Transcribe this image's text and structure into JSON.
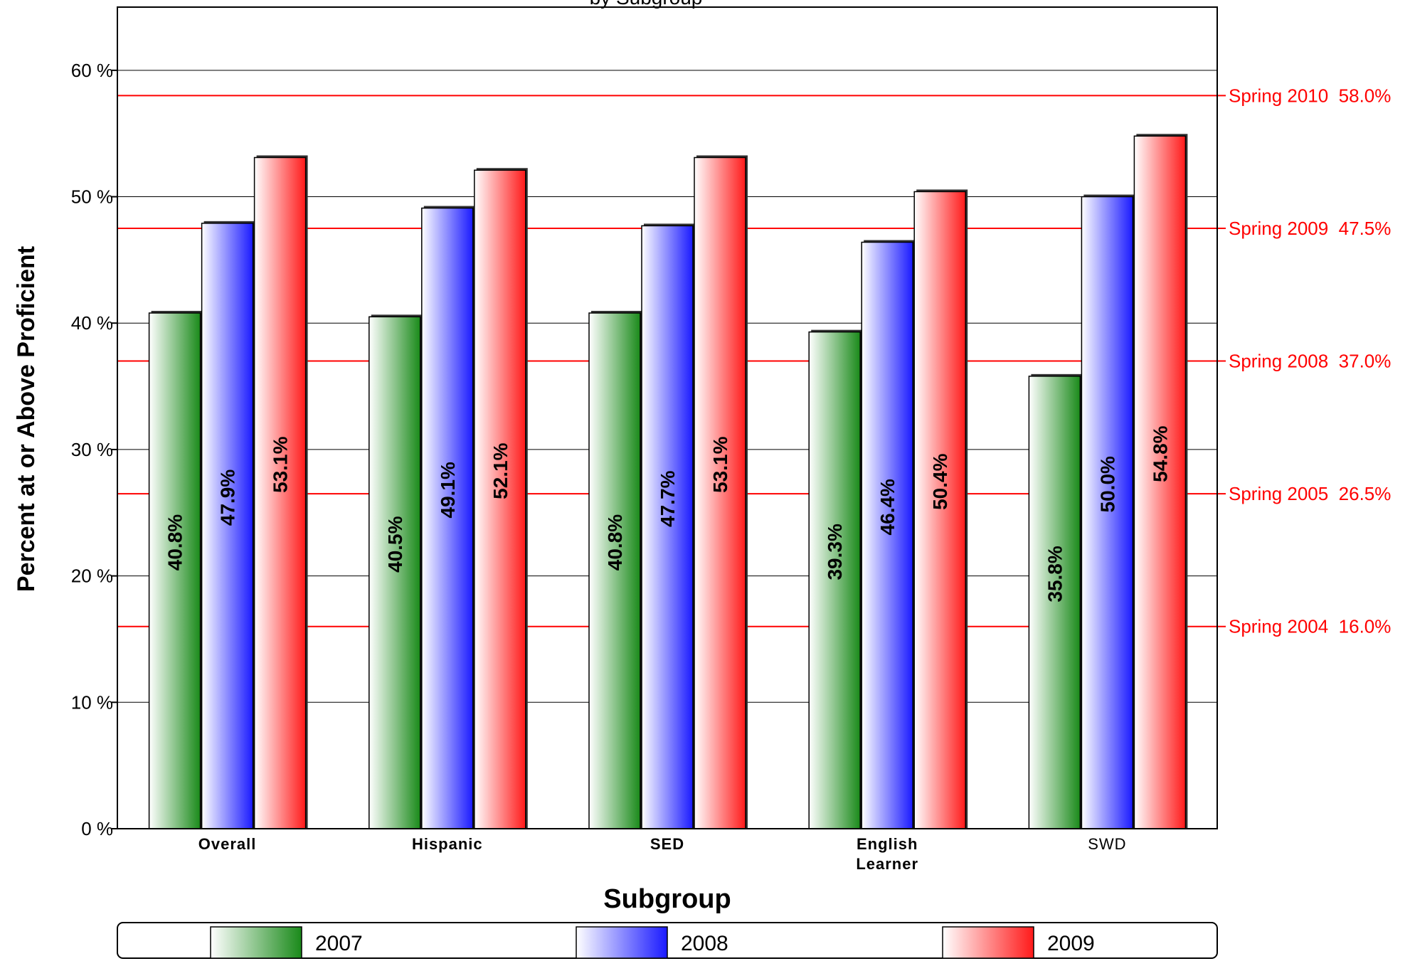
{
  "chart_data": {
    "type": "bar",
    "title": "by Subgroup",
    "xlabel": "Subgroup",
    "ylabel": "Percent at or Above Proficient",
    "ylim": [
      0,
      65
    ],
    "yticks": [
      {
        "value": 0,
        "label": "0 %"
      },
      {
        "value": 10,
        "label": "10 %"
      },
      {
        "value": 20,
        "label": "20 %"
      },
      {
        "value": 30,
        "label": "30 %"
      },
      {
        "value": 40,
        "label": "40 %"
      },
      {
        "value": 50,
        "label": "50 %"
      },
      {
        "value": 60,
        "label": "60 %"
      }
    ],
    "grid": true,
    "categories": [
      [
        "Overall"
      ],
      [
        "Hispanic"
      ],
      [
        "SED"
      ],
      [
        "English",
        "Learner"
      ],
      [
        "SWD"
      ]
    ],
    "series": [
      {
        "name": "2007",
        "color": "#1a8a1a",
        "values": [
          40.8,
          40.5,
          40.8,
          39.3,
          35.8
        ],
        "labels": [
          "40.8%",
          "40.5%",
          "40.8%",
          "39.3%",
          "35.8%"
        ]
      },
      {
        "name": "2008",
        "color": "#1a1aff",
        "values": [
          47.9,
          49.1,
          47.7,
          46.4,
          50.0
        ],
        "labels": [
          "47.9%",
          "49.1%",
          "47.7%",
          "46.4%",
          "50.0%"
        ]
      },
      {
        "name": "2009",
        "color": "#ff1a1a",
        "values": [
          53.1,
          52.1,
          53.1,
          50.4,
          54.8
        ],
        "labels": [
          "53.1%",
          "52.1%",
          "53.1%",
          "50.4%",
          "54.8%"
        ]
      }
    ],
    "reference_lines": [
      {
        "value": 58.0,
        "label": "Spring 2010  58.0%"
      },
      {
        "value": 47.5,
        "label": "Spring 2009  47.5%"
      },
      {
        "value": 37.0,
        "label": "Spring 2008  37.0%"
      },
      {
        "value": 26.5,
        "label": "Spring 2005  26.5%"
      },
      {
        "value": 16.0,
        "label": "Spring 2004  16.0%"
      }
    ],
    "reference_color": "#ff0000",
    "legend_position": "bottom"
  }
}
